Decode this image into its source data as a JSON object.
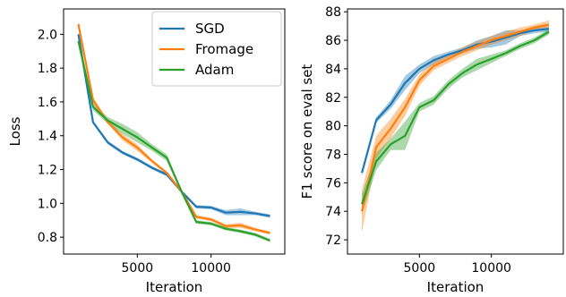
{
  "chart_data": [
    {
      "type": "line",
      "xlabel": "Iteration",
      "ylabel": "Loss",
      "xlim": [
        0,
        15000
      ],
      "ylim": [
        0.7,
        2.15
      ],
      "xticks": [
        5000,
        10000
      ],
      "xtick_labels": [
        "5000",
        "10000"
      ],
      "yticks": [
        0.8,
        1.0,
        1.2,
        1.4,
        1.6,
        1.8,
        2.0
      ],
      "ytick_labels": [
        "0.8",
        "1.0",
        "1.2",
        "1.4",
        "1.6",
        "1.8",
        "2.0"
      ],
      "grid": false,
      "legend": "top-right",
      "series": [
        {
          "name": "SGD",
          "color": "#1f77b4",
          "x": [
            1000,
            2000,
            3000,
            4000,
            5000,
            6000,
            7000,
            8000,
            9000,
            10000,
            11000,
            12000,
            13000,
            14000
          ],
          "y": [
            2.0,
            1.48,
            1.36,
            1.3,
            1.26,
            1.21,
            1.17,
            1.07,
            0.98,
            0.975,
            0.945,
            0.95,
            0.94,
            0.925
          ],
          "band": [
            0.01,
            0.01,
            0.01,
            0.01,
            0.01,
            0.01,
            0.01,
            0.01,
            0.01,
            0.01,
            0.015,
            0.02,
            0.01,
            0.01
          ]
        },
        {
          "name": "Fromage",
          "color": "#ff7f0e",
          "x": [
            1000,
            2000,
            3000,
            4000,
            5000,
            6000,
            7000,
            8000,
            9000,
            10000,
            11000,
            12000,
            13000,
            14000
          ],
          "y": [
            2.06,
            1.61,
            1.48,
            1.39,
            1.33,
            1.25,
            1.18,
            1.07,
            0.92,
            0.905,
            0.865,
            0.87,
            0.845,
            0.825
          ],
          "band": [
            0.02,
            0.02,
            0.01,
            0.02,
            0.02,
            0.01,
            0.01,
            0.01,
            0.01,
            0.01,
            0.01,
            0.015,
            0.01,
            0.01
          ]
        },
        {
          "name": "Adam",
          "color": "#2ca02c",
          "x": [
            1000,
            2000,
            3000,
            4000,
            5000,
            6000,
            7000,
            8000,
            9000,
            10000,
            11000,
            12000,
            13000,
            14000
          ],
          "y": [
            1.96,
            1.57,
            1.49,
            1.44,
            1.39,
            1.33,
            1.27,
            1.07,
            0.89,
            0.88,
            0.85,
            0.835,
            0.815,
            0.78
          ],
          "band": [
            0.02,
            0.02,
            0.02,
            0.03,
            0.03,
            0.02,
            0.02,
            0.01,
            0.01,
            0.01,
            0.01,
            0.01,
            0.01,
            0.01
          ]
        }
      ]
    },
    {
      "type": "line",
      "xlabel": "Iteration",
      "ylabel": "F1 score on eval set",
      "xlim": [
        0,
        15000
      ],
      "ylim": [
        71,
        88.2
      ],
      "xticks": [
        5000,
        10000
      ],
      "xtick_labels": [
        "5000",
        "10000"
      ],
      "yticks": [
        72,
        74,
        76,
        78,
        80,
        82,
        84,
        86,
        88
      ],
      "ytick_labels": [
        "72",
        "74",
        "76",
        "78",
        "80",
        "82",
        "84",
        "86",
        "88"
      ],
      "grid": false,
      "series": [
        {
          "name": "SGD",
          "color": "#1f77b4",
          "x": [
            1000,
            2000,
            3000,
            4000,
            5000,
            6000,
            7000,
            8000,
            9000,
            10000,
            11000,
            12000,
            13000,
            14000
          ],
          "y": [
            76.7,
            80.4,
            81.5,
            83.0,
            84.0,
            84.6,
            85.0,
            85.3,
            85.7,
            85.9,
            86.2,
            86.5,
            86.7,
            86.8
          ],
          "band": [
            0.2,
            0.2,
            0.3,
            0.5,
            0.3,
            0.3,
            0.2,
            0.2,
            0.3,
            0.4,
            0.5,
            0.2,
            0.2,
            0.2
          ]
        },
        {
          "name": "Fromage",
          "color": "#ff7f0e",
          "x": [
            1000,
            2000,
            3000,
            4000,
            5000,
            6000,
            7000,
            8000,
            9000,
            10000,
            11000,
            12000,
            13000,
            14000
          ],
          "y": [
            74.0,
            78.5,
            79.8,
            81.3,
            83.2,
            84.2,
            84.7,
            85.2,
            85.6,
            86.0,
            86.3,
            86.6,
            86.9,
            87.1
          ],
          "band": [
            1.5,
            0.8,
            0.7,
            0.6,
            0.4,
            0.3,
            0.3,
            0.3,
            0.3,
            0.3,
            0.3,
            0.3,
            0.2,
            0.3
          ]
        },
        {
          "name": "Adam",
          "color": "#2ca02c",
          "x": [
            1000,
            2000,
            3000,
            4000,
            5000,
            6000,
            7000,
            8000,
            9000,
            10000,
            11000,
            12000,
            13000,
            14000
          ],
          "y": [
            74.5,
            77.5,
            78.7,
            79.3,
            81.3,
            81.8,
            82.9,
            83.7,
            84.3,
            84.7,
            85.1,
            85.6,
            86.0,
            86.6
          ],
          "band": [
            0.7,
            0.6,
            0.4,
            1.0,
            0.3,
            0.3,
            0.3,
            0.3,
            0.4,
            0.3,
            0.2,
            0.2,
            0.2,
            0.2
          ]
        }
      ]
    }
  ]
}
